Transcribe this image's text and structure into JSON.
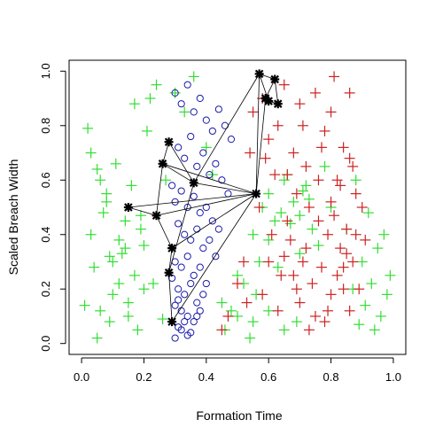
{
  "chart_data": {
    "type": "scatter",
    "title": "",
    "xlabel": "Formation Time",
    "ylabel": "Scaled Breach Width",
    "xlim": [
      -0.04,
      1.04
    ],
    "ylim": [
      -0.04,
      1.04
    ],
    "xticks": [
      "0.0",
      "0.2",
      "0.4",
      "0.6",
      "0.8",
      "1.0"
    ],
    "yticks": [
      "0.0",
      "0.2",
      "0.4",
      "0.6",
      "0.8",
      "1.0"
    ],
    "grid": false,
    "legend": "none",
    "colors": {
      "green": "#33dd33",
      "red": "#cc2222",
      "blue": "#1a1aaa",
      "black": "#000000"
    },
    "series": [
      {
        "marker": "plus",
        "color": "green",
        "x": [
          0.02,
          0.05,
          0.08,
          0.03,
          0.1,
          0.12,
          0.15,
          0.06,
          0.09,
          0.18,
          0.2,
          0.04,
          0.14,
          0.16,
          0.11,
          0.07,
          0.13,
          0.19,
          0.01,
          0.05,
          0.22,
          0.1,
          0.17,
          0.08,
          0.03,
          0.12,
          0.06,
          0.15,
          0.2,
          0.09,
          0.45,
          0.5,
          0.55,
          0.58,
          0.6,
          0.62,
          0.65,
          0.68,
          0.7,
          0.72,
          0.74,
          0.76,
          0.66,
          0.64,
          0.7,
          0.73,
          0.6,
          0.57,
          0.52,
          0.48,
          0.55,
          0.63,
          0.67,
          0.71,
          0.78,
          0.8,
          0.85,
          0.9,
          0.93,
          0.96,
          0.98,
          0.95,
          0.92,
          0.88,
          0.99,
          0.94,
          0.97,
          0.91,
          0.89,
          0.87,
          0.3,
          0.33,
          0.36,
          0.4,
          0.42,
          0.46,
          0.5,
          0.54,
          0.56,
          0.6,
          0.65,
          0.69,
          0.24,
          0.27,
          0.21,
          0.23,
          0.19,
          0.26,
          0.17,
          0.14
        ],
        "y": [
          0.79,
          0.64,
          0.52,
          0.4,
          0.3,
          0.22,
          0.15,
          0.12,
          0.08,
          0.05,
          0.36,
          0.28,
          0.45,
          0.58,
          0.66,
          0.48,
          0.33,
          0.42,
          0.14,
          0.02,
          0.9,
          0.18,
          0.25,
          0.55,
          0.7,
          0.38,
          0.6,
          0.1,
          0.2,
          0.32,
          0.15,
          0.25,
          0.4,
          0.5,
          0.55,
          0.45,
          0.6,
          0.52,
          0.47,
          0.58,
          0.42,
          0.36,
          0.62,
          0.48,
          0.33,
          0.53,
          0.38,
          0.3,
          0.22,
          0.12,
          0.08,
          0.28,
          0.44,
          0.56,
          0.65,
          0.5,
          0.42,
          0.3,
          0.22,
          0.1,
          0.18,
          0.35,
          0.48,
          0.6,
          0.25,
          0.05,
          0.4,
          0.14,
          0.07,
          0.2,
          0.92,
          0.85,
          0.98,
          0.72,
          0.62,
          0.05,
          0.1,
          0.02,
          0.18,
          0.12,
          0.05,
          0.08,
          0.95,
          0.6,
          0.78,
          0.22,
          0.47,
          0.09,
          0.88,
          0.35
        ]
      },
      {
        "marker": "plus",
        "color": "red",
        "x": [
          0.55,
          0.58,
          0.6,
          0.63,
          0.65,
          0.68,
          0.7,
          0.72,
          0.75,
          0.78,
          0.8,
          0.82,
          0.84,
          0.86,
          0.88,
          0.9,
          0.62,
          0.66,
          0.69,
          0.73,
          0.76,
          0.79,
          0.81,
          0.83,
          0.85,
          0.87,
          0.64,
          0.67,
          0.71,
          0.74,
          0.77,
          0.8,
          0.84,
          0.86,
          0.6,
          0.7,
          0.75,
          0.78,
          0.82,
          0.85,
          0.88,
          0.57,
          0.61,
          0.65,
          0.69,
          0.72,
          0.76,
          0.8,
          0.83,
          0.87,
          0.5,
          0.53,
          0.47,
          0.45,
          0.52,
          0.58,
          0.63,
          0.68,
          0.73,
          0.79,
          0.84,
          0.89,
          0.91,
          0.77,
          0.71,
          0.66,
          0.59,
          0.54,
          0.81,
          0.86
        ],
        "y": [
          0.85,
          0.9,
          0.75,
          0.8,
          0.95,
          0.7,
          0.88,
          0.65,
          0.92,
          0.78,
          0.85,
          0.6,
          0.72,
          0.68,
          0.55,
          0.5,
          0.62,
          0.45,
          0.55,
          0.5,
          0.6,
          0.4,
          0.47,
          0.35,
          0.42,
          0.3,
          0.25,
          0.38,
          0.3,
          0.22,
          0.28,
          0.18,
          0.2,
          0.12,
          0.3,
          0.15,
          0.1,
          0.08,
          0.25,
          0.33,
          0.4,
          0.5,
          0.4,
          0.32,
          0.2,
          0.35,
          0.45,
          0.52,
          0.58,
          0.65,
          0.22,
          0.15,
          0.1,
          0.05,
          0.3,
          0.18,
          0.12,
          0.25,
          0.05,
          0.12,
          0.28,
          0.2,
          0.38,
          0.72,
          0.8,
          0.62,
          0.68,
          0.7,
          0.98,
          0.92
        ]
      },
      {
        "marker": "circle",
        "color": "blue",
        "x": [
          0.3,
          0.32,
          0.34,
          0.36,
          0.38,
          0.4,
          0.42,
          0.44,
          0.46,
          0.48,
          0.31,
          0.33,
          0.35,
          0.37,
          0.39,
          0.41,
          0.43,
          0.45,
          0.47,
          0.29,
          0.3,
          0.32,
          0.34,
          0.36,
          0.38,
          0.4,
          0.42,
          0.44,
          0.31,
          0.33,
          0.35,
          0.37,
          0.39,
          0.41,
          0.43,
          0.3,
          0.32,
          0.34,
          0.36,
          0.38,
          0.4,
          0.29,
          0.31,
          0.33,
          0.35,
          0.37,
          0.39,
          0.3,
          0.32,
          0.34,
          0.36,
          0.38,
          0.31,
          0.33,
          0.35,
          0.37,
          0.3,
          0.32,
          0.34,
          0.31
        ],
        "y": [
          0.92,
          0.88,
          0.95,
          0.85,
          0.9,
          0.82,
          0.78,
          0.86,
          0.8,
          0.75,
          0.72,
          0.68,
          0.76,
          0.65,
          0.7,
          0.62,
          0.66,
          0.6,
          0.55,
          0.58,
          0.52,
          0.56,
          0.5,
          0.54,
          0.48,
          0.5,
          0.45,
          0.42,
          0.44,
          0.4,
          0.38,
          0.42,
          0.35,
          0.38,
          0.32,
          0.3,
          0.28,
          0.32,
          0.25,
          0.28,
          0.22,
          0.24,
          0.2,
          0.18,
          0.22,
          0.15,
          0.18,
          0.14,
          0.12,
          0.1,
          0.08,
          0.12,
          0.06,
          0.08,
          0.04,
          0.1,
          0.02,
          0.05,
          0.03,
          0.16
        ]
      },
      {
        "marker": "star",
        "color": "black",
        "x": [
          0.15,
          0.24,
          0.26,
          0.28,
          0.29,
          0.28,
          0.29,
          0.36,
          0.56,
          0.57,
          0.59,
          0.6,
          0.62,
          0.63
        ],
        "y": [
          0.5,
          0.47,
          0.66,
          0.74,
          0.35,
          0.26,
          0.08,
          0.59,
          0.55,
          0.99,
          0.9,
          0.89,
          0.97,
          0.88
        ]
      }
    ]
  }
}
